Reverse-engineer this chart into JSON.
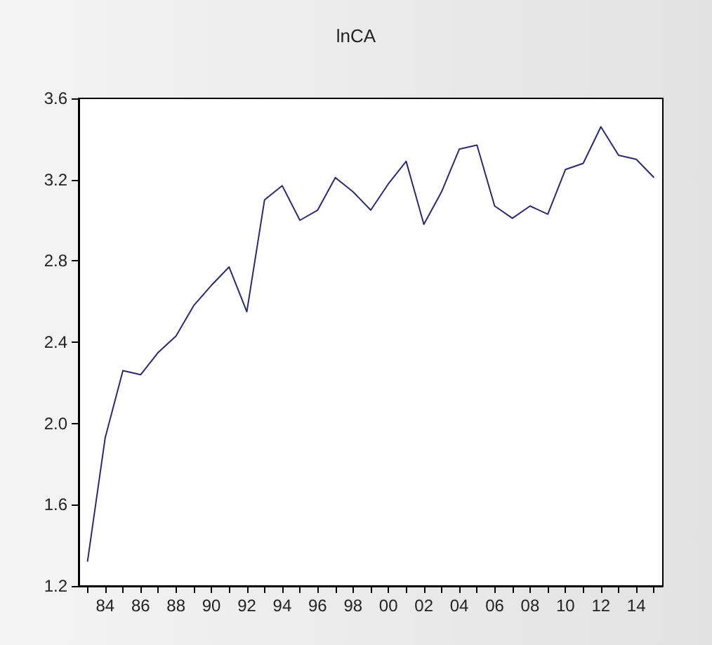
{
  "chart_data": {
    "type": "line",
    "title": "lnCA",
    "categories": [
      null,
      "84",
      null,
      "86",
      null,
      "88",
      null,
      "90",
      null,
      "92",
      null,
      "94",
      null,
      "96",
      null,
      "98",
      null,
      "00",
      null,
      "02",
      null,
      "04",
      null,
      "06",
      null,
      "08",
      null,
      "10",
      null,
      "12",
      null,
      "14",
      null
    ],
    "series": [
      {
        "color": "#2b2b6b",
        "values": [
          1.32,
          1.93,
          2.26,
          2.24,
          2.35,
          2.43,
          2.58,
          2.68,
          2.77,
          2.55,
          3.1,
          3.17,
          3.0,
          3.05,
          3.21,
          3.14,
          3.05,
          3.18,
          3.29,
          2.98,
          3.14,
          3.35,
          3.37,
          3.07,
          3.01,
          3.07,
          3.03,
          3.25,
          3.28,
          3.46,
          3.32,
          3.3,
          3.21
        ]
      }
    ],
    "ylim": [
      1.2,
      3.6
    ],
    "yticks": [
      1.2,
      1.6,
      {
        "value": 2,
        "label": "2.0"
      },
      2.4,
      2.8,
      3.2,
      3.6
    ],
    "grid": false,
    "marker": "none",
    "line_style": "solid"
  }
}
